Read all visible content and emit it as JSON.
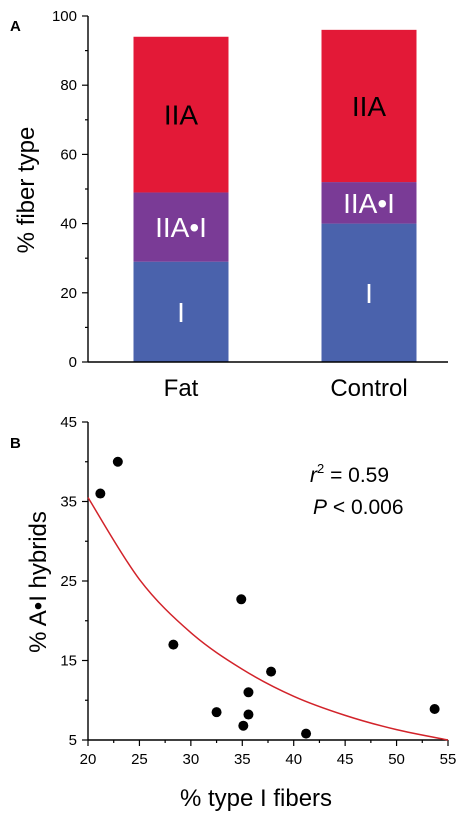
{
  "chart_data": [
    {
      "panel": "A",
      "type": "bar",
      "stacked": true,
      "ylabel": "% fiber type",
      "ylim": [
        0,
        100
      ],
      "yticks": [
        0,
        20,
        40,
        60,
        80,
        100
      ],
      "categories": [
        "Fat",
        "Control"
      ],
      "series": [
        {
          "name": "I",
          "label": "I",
          "color": "#4A62AC",
          "label_color": "#ffffff",
          "values": [
            29,
            40
          ]
        },
        {
          "name": "IIA•I",
          "label": "IIA•I",
          "color": "#7A3B96",
          "label_color": "#ffffff",
          "values": [
            20,
            12
          ]
        },
        {
          "name": "IIA",
          "label": "IIA",
          "color": "#E31937",
          "label_color": "#000000",
          "values": [
            45,
            44
          ]
        }
      ]
    },
    {
      "panel": "B",
      "type": "scatter",
      "xlabel": "% type I fibers",
      "ylabel": "% A•I hybrids",
      "xlim": [
        20,
        55
      ],
      "ylim": [
        5,
        45
      ],
      "xticks": [
        20,
        25,
        30,
        35,
        40,
        45,
        50,
        55
      ],
      "yticks": [
        5,
        15,
        25,
        35,
        45
      ],
      "points": [
        {
          "x": 21.2,
          "y": 36
        },
        {
          "x": 22.9,
          "y": 40
        },
        {
          "x": 28.3,
          "y": 17
        },
        {
          "x": 32.5,
          "y": 8.5
        },
        {
          "x": 34.9,
          "y": 22.7
        },
        {
          "x": 35.1,
          "y": 6.8
        },
        {
          "x": 35.6,
          "y": 8.2
        },
        {
          "x": 35.6,
          "y": 11
        },
        {
          "x": 37.8,
          "y": 13.6
        },
        {
          "x": 41.2,
          "y": 5.8
        },
        {
          "x": 53.7,
          "y": 8.9
        }
      ],
      "fit_curve": {
        "color": "#D2232A",
        "points": [
          [
            20,
            35.5
          ],
          [
            25,
            25.2
          ],
          [
            30,
            18.5
          ],
          [
            35,
            13.9
          ],
          [
            40,
            10.5
          ],
          [
            45,
            8.1
          ],
          [
            50,
            6.3
          ],
          [
            55,
            5
          ]
        ]
      },
      "annotation": {
        "r2_symbol": "r",
        "r2_sup": "2",
        "r2_value": " = 0.59",
        "p_symbol": "P",
        "p_value": " < 0.006"
      }
    }
  ]
}
